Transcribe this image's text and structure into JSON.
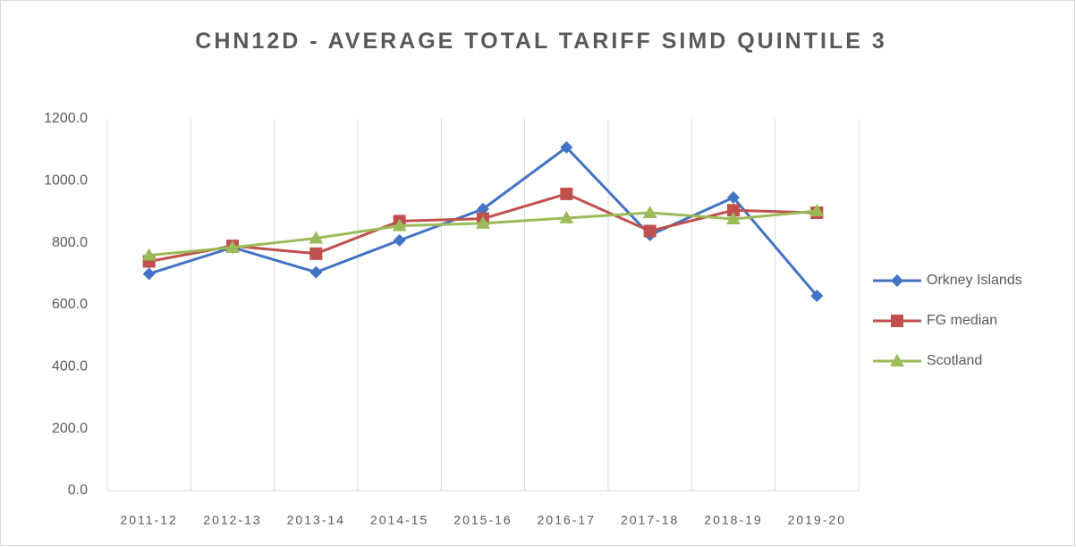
{
  "chart_data": {
    "type": "line",
    "title": "CHN12D - AVERAGE TOTAL TARIFF SIMD QUINTILE 3",
    "categories": [
      "2011-12",
      "2012-13",
      "2013-14",
      "2014-15",
      "2015-16",
      "2016-17",
      "2017-18",
      "2018-19",
      "2019-20"
    ],
    "series": [
      {
        "name": "Orkney Islands",
        "color": "#4472c4",
        "marker": "diamond",
        "values": [
          700,
          785,
          705,
          808,
          909,
          1108,
          825,
          946,
          629
        ]
      },
      {
        "name": "FG median",
        "color": "#c0504d",
        "marker": "square",
        "values": [
          740,
          790,
          765,
          870,
          878,
          958,
          838,
          905,
          897
        ]
      },
      {
        "name": "Scotland",
        "color": "#9bbb59",
        "marker": "triangle",
        "values": [
          760,
          785,
          815,
          855,
          863,
          880,
          897,
          877,
          903
        ]
      }
    ],
    "ylim": [
      0,
      1200
    ],
    "yticks": [
      {
        "value": 0,
        "label": "0.0"
      },
      {
        "value": 200,
        "label": "200.0"
      },
      {
        "value": 400,
        "label": "400.0"
      },
      {
        "value": 600,
        "label": "600.0"
      },
      {
        "value": 800,
        "label": "800.0"
      },
      {
        "value": 1000,
        "label": "1000.0"
      },
      {
        "value": 1200,
        "label": "1200.0"
      }
    ],
    "grid": true,
    "legend": "right"
  }
}
